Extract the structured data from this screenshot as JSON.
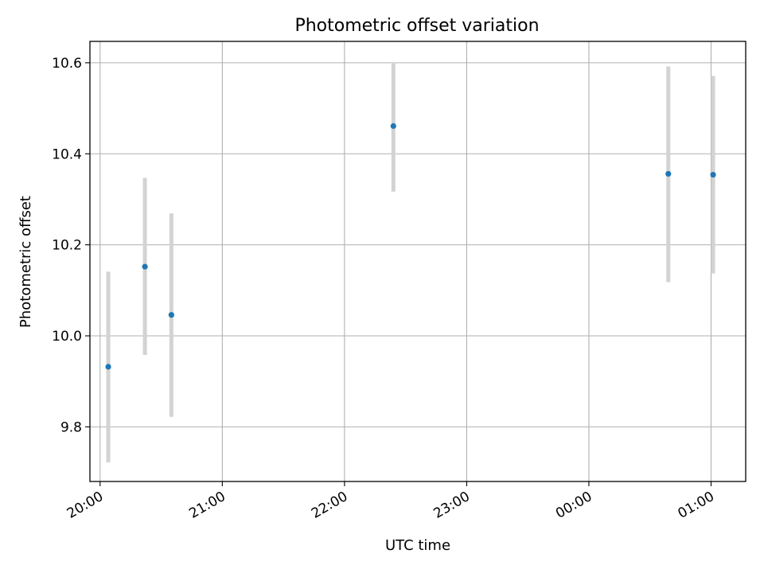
{
  "chart_data": {
    "type": "scatter",
    "title": "Photometric offset variation",
    "xlabel": "UTC time",
    "ylabel": "Photometric offset",
    "x_unit": "hours",
    "xlim": [
      "19:55",
      "01:17"
    ],
    "ylim": [
      9.68,
      10.647
    ],
    "x_ticks": [
      "20:00",
      "21:00",
      "22:00",
      "23:00",
      "00:00",
      "01:00"
    ],
    "y_ticks": [
      "9.8",
      "10.0",
      "10.2",
      "10.4",
      "10.6"
    ],
    "grid": true,
    "colors": {
      "point": "#1f77b4",
      "errorbar": "#d3d3d3",
      "grid": "#b0b0b0"
    },
    "points": [
      {
        "x": "20:04",
        "y": 9.932,
        "yerr_low": 9.722,
        "yerr_high": 10.141
      },
      {
        "x": "20:22",
        "y": 10.152,
        "yerr_low": 9.958,
        "yerr_high": 10.347
      },
      {
        "x": "20:35",
        "y": 10.046,
        "yerr_low": 9.822,
        "yerr_high": 10.269
      },
      {
        "x": "22:24",
        "y": 10.461,
        "yerr_low": 10.317,
        "yerr_high": 10.601
      },
      {
        "x": "00:39",
        "y": 10.356,
        "yerr_low": 10.118,
        "yerr_high": 10.592
      },
      {
        "x": "01:01",
        "y": 10.354,
        "yerr_low": 10.137,
        "yerr_high": 10.571
      }
    ]
  }
}
